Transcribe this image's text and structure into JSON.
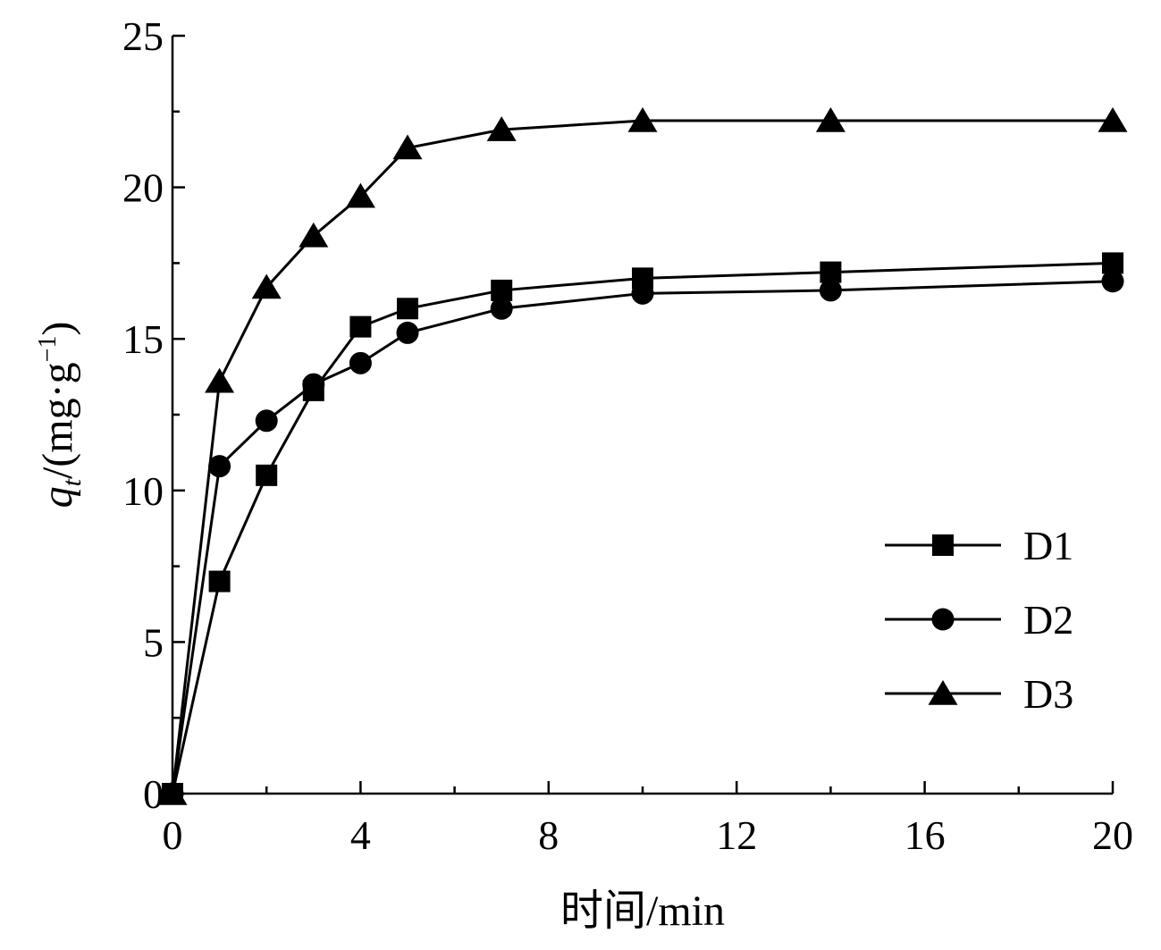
{
  "chart_data": {
    "type": "line",
    "xlabel": "时间/min",
    "ylabel": "qt/(mg·g⁻¹)",
    "ylabel_parts": {
      "q": "q",
      "sub": "t",
      "rest": "/(mg·g",
      "sup": "−1",
      "close": ")"
    },
    "xlim": [
      0,
      20
    ],
    "ylim": [
      0,
      25
    ],
    "xticks": [
      0,
      4,
      8,
      12,
      16,
      20
    ],
    "yticks": [
      0,
      5,
      10,
      15,
      20,
      25
    ],
    "grid": false,
    "legend_position": "lower-right",
    "series": [
      {
        "name": "D1",
        "marker": "square",
        "x": [
          0,
          1,
          2,
          3,
          4,
          5,
          7,
          10,
          14,
          20
        ],
        "y": [
          0,
          7.0,
          10.5,
          13.3,
          15.4,
          16.0,
          16.6,
          17.0,
          17.2,
          17.5
        ]
      },
      {
        "name": "D2",
        "marker": "circle",
        "x": [
          0,
          1,
          2,
          3,
          4,
          5,
          7,
          10,
          14,
          20
        ],
        "y": [
          0,
          10.8,
          12.3,
          13.5,
          14.2,
          15.2,
          16.0,
          16.5,
          16.6,
          16.9
        ]
      },
      {
        "name": "D3",
        "marker": "triangle",
        "x": [
          0,
          1,
          2,
          3,
          4,
          5,
          7,
          10,
          14,
          20
        ],
        "y": [
          0,
          13.6,
          16.7,
          18.4,
          19.7,
          21.3,
          21.9,
          22.2,
          22.2,
          22.2
        ]
      }
    ]
  }
}
